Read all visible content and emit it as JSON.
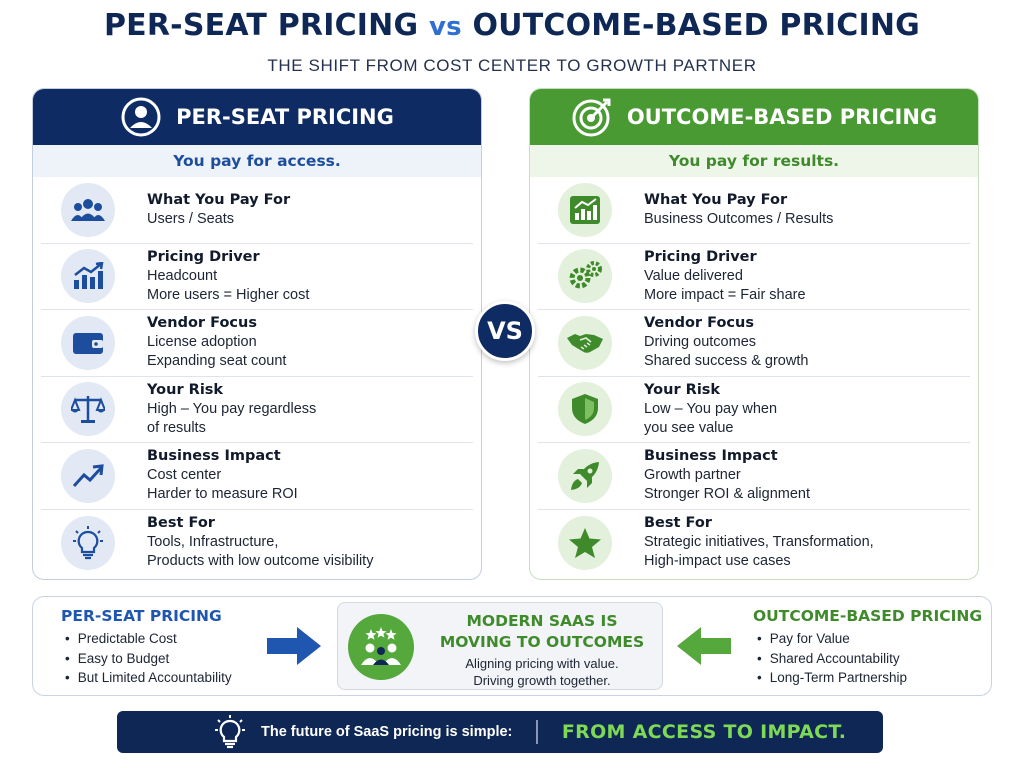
{
  "header": {
    "title_part1": "PER-SEAT PRICING",
    "title_vs": "vs",
    "title_part2": "OUTCOME-BASED PRICING",
    "subtitle": "THE SHIFT FROM COST CENTER TO GROWTH PARTNER"
  },
  "colors": {
    "navy": "#0f2b63",
    "green": "#4a9a34",
    "blue_accent": "#1e56b0",
    "green_text": "#3f8a2b",
    "footer_highlight": "#7ed957"
  },
  "left_panel": {
    "header_icon": "user-circle-icon",
    "title": "PER-SEAT PRICING",
    "tagline": "You pay for access.",
    "rows": [
      {
        "icon": "users-group-icon",
        "title": "What You Pay For",
        "line1": "Users / Seats",
        "line2": ""
      },
      {
        "icon": "bar-chart-up-icon",
        "title": "Pricing Driver",
        "line1": "Headcount",
        "line2": "More users = Higher cost"
      },
      {
        "icon": "wallet-icon",
        "title": "Vendor Focus",
        "line1": "License adoption",
        "line2": "Expanding seat count"
      },
      {
        "icon": "balance-scale-icon",
        "title": "Your Risk",
        "line1": "High – You pay regardless",
        "line2": "of results"
      },
      {
        "icon": "trend-up-arrow-icon",
        "title": "Business Impact",
        "line1": "Cost center",
        "line2": "Harder to measure ROI"
      },
      {
        "icon": "lightbulb-icon",
        "title": "Best For",
        "line1": "Tools, Infrastructure,",
        "line2": "Products with low outcome visibility"
      }
    ]
  },
  "right_panel": {
    "header_icon": "target-arrow-icon",
    "title": "OUTCOME-BASED PRICING",
    "tagline": "You pay for results.",
    "rows": [
      {
        "icon": "growth-chart-icon",
        "title": "What You Pay For",
        "line1": "Business Outcomes / Results",
        "line2": ""
      },
      {
        "icon": "gears-icon",
        "title": "Pricing Driver",
        "line1": "Value delivered",
        "line2": "More impact = Fair share"
      },
      {
        "icon": "handshake-icon",
        "title": "Vendor Focus",
        "line1": "Driving outcomes",
        "line2": "Shared success & growth"
      },
      {
        "icon": "shield-icon",
        "title": "Your Risk",
        "line1": "Low – You pay when",
        "line2": "you see value"
      },
      {
        "icon": "rocket-icon",
        "title": "Business Impact",
        "line1": "Growth partner",
        "line2": "Stronger ROI & alignment"
      },
      {
        "icon": "star-icon",
        "title": "Best For",
        "line1": "Strategic initiatives, Transformation,",
        "line2": "High-impact use cases"
      }
    ]
  },
  "vs_label": "VS",
  "bottom": {
    "left_title": "PER-SEAT PRICING",
    "left_points": [
      "Predictable Cost",
      "Easy to Budget",
      "But Limited Accountability"
    ],
    "center_icon": "team-stars-icon",
    "center_title_line1": "MODERN SAAS IS",
    "center_title_line2": "MOVING TO OUTCOMES",
    "center_sub_line1": "Aligning pricing with value.",
    "center_sub_line2": "Driving growth together.",
    "right_title": "OUTCOME-BASED PRICING",
    "right_points": [
      "Pay for Value",
      "Shared Accountability",
      "Long-Term Partnership"
    ]
  },
  "footer": {
    "icon": "lightbulb-icon",
    "text": "The future of SaaS pricing is simple:",
    "highlight": "FROM ACCESS TO IMPACT."
  }
}
